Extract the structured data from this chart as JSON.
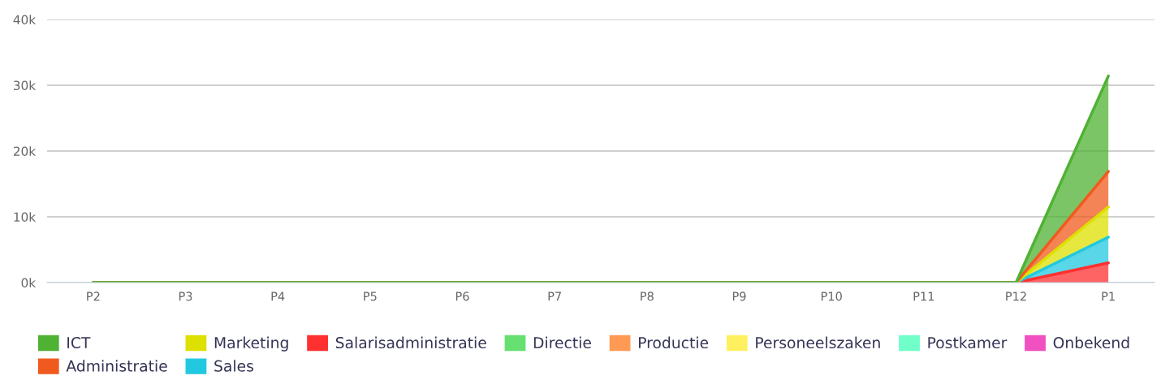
{
  "chart_data": {
    "type": "area",
    "stacked": true,
    "categories": [
      "P2",
      "P3",
      "P4",
      "P5",
      "P6",
      "P7",
      "P8",
      "P9",
      "P10",
      "P11",
      "P12",
      "P1"
    ],
    "series": [
      {
        "name": "Onbekend",
        "color": "#f050c0",
        "values": [
          null,
          null,
          null,
          null,
          null,
          null,
          null,
          null,
          null,
          null,
          null,
          null
        ]
      },
      {
        "name": "Postkamer",
        "color": "#70ffc8",
        "values": [
          null,
          null,
          null,
          null,
          null,
          null,
          null,
          null,
          null,
          null,
          null,
          null
        ]
      },
      {
        "name": "Personeelszaken",
        "color": "#fff060",
        "values": [
          null,
          null,
          null,
          null,
          null,
          null,
          null,
          null,
          null,
          null,
          null,
          null
        ]
      },
      {
        "name": "Productie",
        "color": "#ff9a55",
        "values": [
          null,
          null,
          null,
          null,
          null,
          null,
          null,
          null,
          null,
          null,
          null,
          null
        ]
      },
      {
        "name": "Directie",
        "color": "#66e070",
        "values": [
          null,
          null,
          null,
          null,
          null,
          null,
          null,
          null,
          null,
          null,
          null,
          null
        ]
      },
      {
        "name": "Salarisadministratie",
        "color": "#ff3030",
        "values": [
          0,
          0,
          0,
          0,
          0,
          0,
          0,
          0,
          0,
          0,
          0,
          3000
        ]
      },
      {
        "name": "Sales",
        "color": "#22c8e0",
        "values": [
          0,
          0,
          0,
          0,
          0,
          0,
          0,
          0,
          0,
          0,
          0,
          3900
        ]
      },
      {
        "name": "Marketing",
        "color": "#dde000",
        "values": [
          0,
          0,
          0,
          0,
          0,
          0,
          0,
          0,
          0,
          0,
          0,
          4600
        ]
      },
      {
        "name": "Administratie",
        "color": "#f05a1e",
        "values": [
          0,
          0,
          0,
          0,
          0,
          0,
          0,
          0,
          0,
          0,
          0,
          5400
        ]
      },
      {
        "name": "ICT",
        "color": "#4fb233",
        "values": [
          0,
          0,
          0,
          0,
          0,
          0,
          0,
          0,
          0,
          0,
          0,
          14500
        ]
      }
    ],
    "ylim": [
      0,
      40000
    ],
    "yticks": [
      {
        "value": 0,
        "label": "0k"
      },
      {
        "value": 10000,
        "label": "10k"
      },
      {
        "value": 20000,
        "label": "20k"
      },
      {
        "value": 30000,
        "label": "30k"
      },
      {
        "value": 40000,
        "label": "40k"
      }
    ],
    "grid": "y",
    "legend": "bottom"
  }
}
